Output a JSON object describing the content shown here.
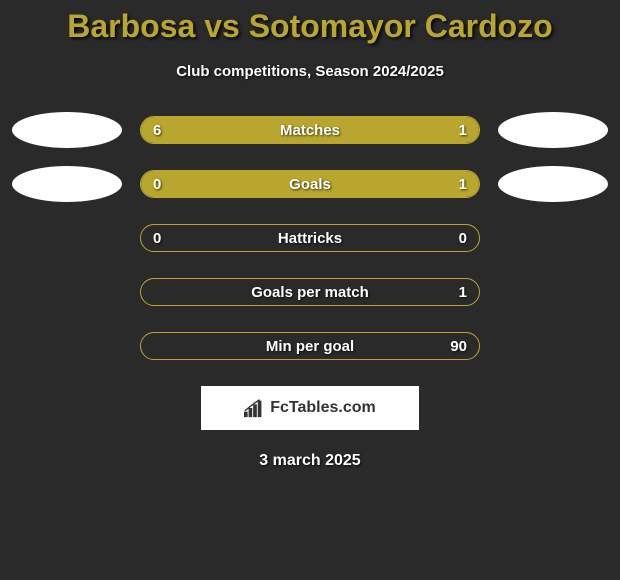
{
  "title": "Barbosa vs Sotomayor Cardozo",
  "subtitle": "Club competitions, Season 2024/2025",
  "date": "3 march 2025",
  "footer": {
    "label": "FcTables.com"
  },
  "colors": {
    "accent": "#b8a62e",
    "background": "#2a2a2a",
    "text": "#ffffff",
    "ellipse": "#ffffff"
  },
  "stats": [
    {
      "label": "Matches",
      "left_value": "6",
      "right_value": "1",
      "left_pct": 78,
      "right_pct": 22,
      "show_ellipses": true
    },
    {
      "label": "Goals",
      "left_value": "0",
      "right_value": "1",
      "left_pct": 17,
      "right_pct": 83,
      "show_ellipses": true
    },
    {
      "label": "Hattricks",
      "left_value": "0",
      "right_value": "0",
      "left_pct": 0,
      "right_pct": 0,
      "show_ellipses": false
    },
    {
      "label": "Goals per match",
      "left_value": "",
      "right_value": "1",
      "left_pct": 0,
      "right_pct": 0,
      "show_ellipses": false
    },
    {
      "label": "Min per goal",
      "left_value": "",
      "right_value": "90",
      "left_pct": 0,
      "right_pct": 0,
      "show_ellipses": false
    }
  ]
}
